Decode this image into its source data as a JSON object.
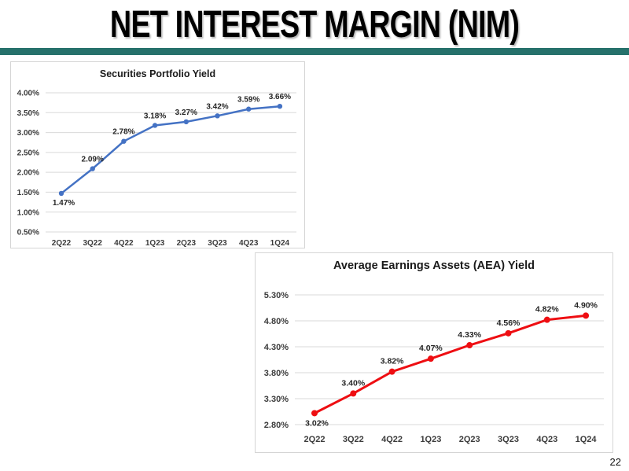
{
  "slide": {
    "title": "NET INTEREST MARGIN (NIM)",
    "page_number": "22",
    "accent_bar_color": "#26716B"
  },
  "chart_data": [
    {
      "type": "line",
      "title": "Securities Portfolio Yield",
      "categories": [
        "2Q22",
        "3Q22",
        "4Q22",
        "1Q23",
        "2Q23",
        "3Q23",
        "4Q23",
        "1Q24"
      ],
      "values": [
        1.47,
        2.09,
        2.78,
        3.18,
        3.27,
        3.42,
        3.59,
        3.66
      ],
      "point_labels": [
        "1.47%",
        "2.09%",
        "2.78%",
        "3.18%",
        "3.27%",
        "3.42%",
        "3.59%",
        "3.66%"
      ],
      "y_ticks": [
        {
          "value": 4.0,
          "label": "4.00%"
        },
        {
          "value": 3.5,
          "label": "3.50%"
        },
        {
          "value": 3.0,
          "label": "3.00%"
        },
        {
          "value": 2.5,
          "label": "2.50%"
        },
        {
          "value": 2.0,
          "label": "2.00%"
        },
        {
          "value": 1.5,
          "label": "1.50%"
        },
        {
          "value": 1.0,
          "label": "1.00%"
        },
        {
          "value": 0.5,
          "label": "0.50%"
        }
      ],
      "ylim": [
        0.5,
        4.0
      ],
      "xlabel": "",
      "ylabel": "",
      "grid": true,
      "legend": "none",
      "line_color": "#4472C4",
      "grid_color": "#d9d9d9",
      "text_color": "#3b3b3b",
      "label_color": "#262626",
      "first_label_below": true
    },
    {
      "type": "line",
      "title": "Average Earnings Assets (AEA) Yield",
      "categories": [
        "2Q22",
        "3Q22",
        "4Q22",
        "1Q23",
        "2Q23",
        "3Q23",
        "4Q23",
        "1Q24"
      ],
      "values": [
        3.02,
        3.4,
        3.82,
        4.07,
        4.33,
        4.56,
        4.82,
        4.9
      ],
      "point_labels": [
        "3.02%",
        "3.40%",
        "3.82%",
        "4.07%",
        "4.33%",
        "4.56%",
        "4.82%",
        "4.90%"
      ],
      "y_ticks": [
        {
          "value": 5.3,
          "label": "5.30%"
        },
        {
          "value": 4.8,
          "label": "4.80%"
        },
        {
          "value": 4.3,
          "label": "4.30%"
        },
        {
          "value": 3.8,
          "label": "3.80%"
        },
        {
          "value": 3.3,
          "label": "3.30%"
        },
        {
          "value": 2.8,
          "label": "2.80%"
        }
      ],
      "ylim": [
        2.8,
        5.3
      ],
      "xlabel": "",
      "ylabel": "",
      "grid": true,
      "legend": "none",
      "line_color": "#EE0E12",
      "grid_color": "#d9d9d9",
      "text_color": "#3b3b3b",
      "label_color": "#262626",
      "first_label_below": true
    }
  ]
}
